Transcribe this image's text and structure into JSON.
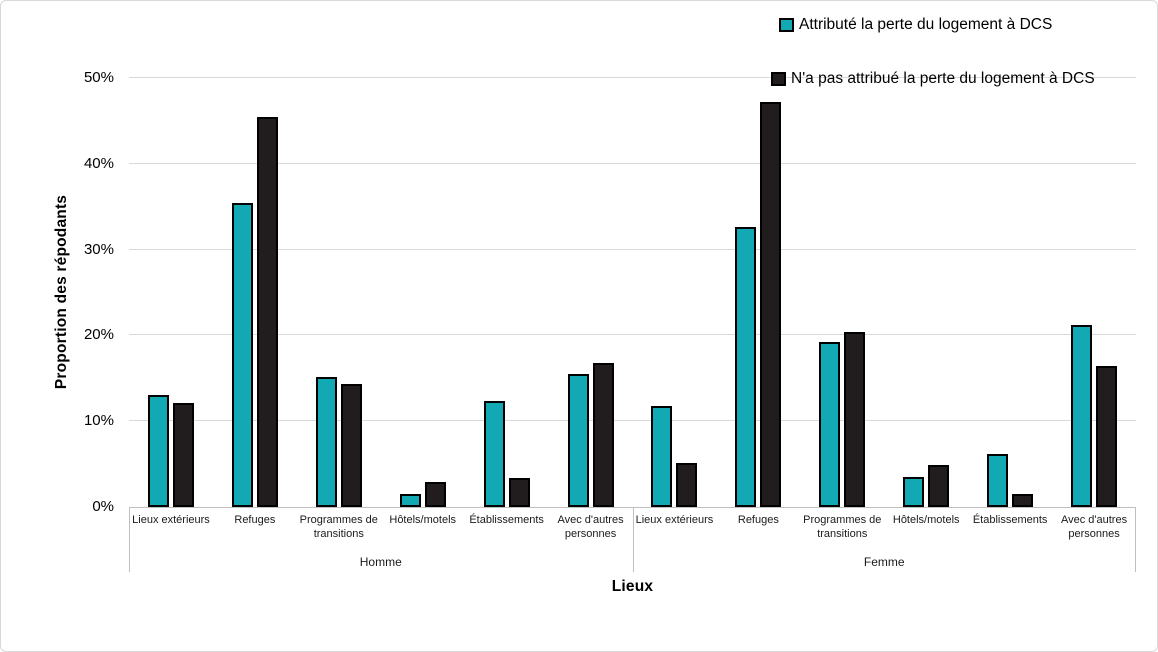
{
  "chart_data": {
    "type": "bar",
    "title": "",
    "ylabel": "Proportion des répodants",
    "xlabel": "Lieux",
    "ylim": [
      0,
      50
    ],
    "ytick_step": 10,
    "ytick_labels": [
      "0%",
      "10%",
      "20%",
      "30%",
      "40%",
      "50%"
    ],
    "grid": true,
    "legend_position": "top-right",
    "groups": [
      "Homme",
      "Femme"
    ],
    "categories": [
      "Lieux extérieurs",
      "Refuges",
      "Programmes de transitions",
      "Hôtels/motels",
      "Établissements",
      "Avec d'autres personnes"
    ],
    "series": [
      {
        "name": "Attributé la perte du logement à DCS",
        "color": "#12a8b4",
        "values": {
          "Homme": [
            13.0,
            35.4,
            15.1,
            1.5,
            12.3,
            15.5
          ],
          "Femme": [
            11.8,
            32.6,
            19.2,
            3.5,
            6.2,
            21.2
          ]
        }
      },
      {
        "name": "N'a pas attribué la perte du logement à DCS",
        "color": "#211d1f",
        "values": {
          "Homme": [
            12.1,
            45.4,
            14.3,
            2.9,
            3.4,
            16.8
          ],
          "Femme": [
            5.1,
            47.2,
            20.4,
            4.9,
            1.5,
            16.4
          ]
        }
      }
    ]
  },
  "colors": {
    "gridline": "#d9d9d9",
    "axis_line": "#bfbfbf",
    "bar_border": "#000000"
  }
}
